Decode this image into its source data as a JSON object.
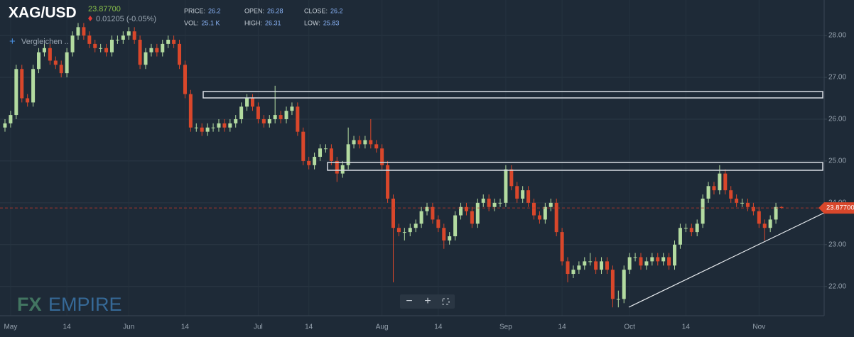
{
  "header": {
    "symbol": "XAG/USD",
    "change": "0.01205 (-0.05%)",
    "compare": "Vergleichen ..",
    "stats": [
      [
        {
          "label": "PRICE:",
          "value": "26.2"
        },
        {
          "label": "OPEN:",
          "value": "26.28"
        },
        {
          "label": "CLOSE:",
          "value": "26.2"
        }
      ],
      [
        {
          "label": "VOL:",
          "value": "25.1 K"
        },
        {
          "label": "HIGH:",
          "value": "26.31"
        },
        {
          "label": "LOW:",
          "value": "25.83"
        }
      ]
    ],
    "logo": {
      "left": "FX",
      "right": "EMPIRE"
    }
  },
  "chart_data": {
    "type": "candlestick",
    "up_color": "#b3dba0",
    "down_color": "#d9472b",
    "last_price": {
      "value": 23.877,
      "label": "23.87700"
    },
    "ylim": [
      21.3,
      28.85
    ],
    "yticks": [
      {
        "value": 22,
        "label": "22.00"
      },
      {
        "value": 23,
        "label": "23.00"
      },
      {
        "value": 24,
        "label": "24.00"
      },
      {
        "value": 25,
        "label": "25.00"
      },
      {
        "value": 26,
        "label": "26.00"
      },
      {
        "value": 27,
        "label": "27.00"
      },
      {
        "value": 28,
        "label": "28.00"
      }
    ],
    "grid": true,
    "categories": [
      null,
      "May",
      null,
      null,
      null,
      null,
      null,
      null,
      null,
      null,
      null,
      "14",
      null,
      null,
      null,
      null,
      null,
      null,
      null,
      null,
      null,
      null,
      "Jun",
      null,
      null,
      null,
      null,
      null,
      null,
      null,
      null,
      null,
      "14",
      null,
      null,
      null,
      null,
      null,
      null,
      null,
      null,
      null,
      null,
      null,
      null,
      "Jul",
      null,
      null,
      null,
      null,
      null,
      null,
      null,
      null,
      "14",
      null,
      null,
      null,
      null,
      null,
      null,
      null,
      null,
      null,
      null,
      null,
      null,
      "Aug",
      null,
      null,
      null,
      null,
      null,
      null,
      null,
      null,
      null,
      "14",
      null,
      null,
      null,
      null,
      null,
      null,
      null,
      null,
      null,
      null,
      null,
      "Sep",
      null,
      null,
      null,
      null,
      null,
      null,
      null,
      null,
      null,
      "14",
      null,
      null,
      null,
      null,
      null,
      null,
      null,
      null,
      null,
      null,
      null,
      "Oct",
      null,
      null,
      null,
      null,
      null,
      null,
      null,
      null,
      null,
      "14",
      null,
      null,
      null,
      null,
      null,
      null,
      null,
      null,
      null,
      null,
      null,
      null,
      "Nov",
      null,
      null,
      null,
      null
    ],
    "open": [
      25.8,
      25.9,
      26.1,
      27.2,
      26.5,
      26.4,
      27.2,
      27.6,
      27.7,
      27.4,
      27.3,
      27.1,
      27.6,
      28.0,
      28.2,
      28.0,
      27.8,
      27.7,
      27.7,
      27.6,
      27.9,
      27.9,
      28.0,
      28.1,
      27.9,
      27.3,
      27.6,
      27.7,
      27.6,
      27.8,
      27.9,
      27.8,
      27.3,
      26.6,
      25.8,
      25.8,
      25.7,
      25.8,
      25.8,
      25.9,
      25.8,
      25.9,
      26.0,
      26.3,
      26.5,
      26.3,
      26.0,
      25.9,
      26.0,
      26.1,
      26.0,
      26.2,
      26.3,
      25.7,
      25.0,
      24.9,
      25.1,
      25.3,
      25.3,
      25.0,
      24.7,
      24.9,
      25.4,
      25.5,
      25.4,
      25.5,
      25.4,
      25.3,
      24.9,
      24.1,
      23.4,
      23.3,
      23.3,
      23.4,
      23.5,
      23.8,
      23.9,
      23.6,
      23.4,
      23.1,
      23.2,
      23.7,
      23.9,
      23.8,
      23.5,
      24.0,
      24.1,
      23.9,
      24.0,
      24.0,
      24.8,
      24.4,
      24.1,
      24.3,
      24.0,
      23.7,
      23.6,
      23.9,
      24.0,
      23.3,
      22.6,
      22.3,
      22.4,
      22.5,
      22.6,
      22.6,
      22.4,
      22.6,
      22.4,
      21.7,
      21.7,
      22.4,
      22.7,
      22.7,
      22.5,
      22.6,
      22.7,
      22.6,
      22.7,
      22.5,
      23.0,
      23.4,
      23.4,
      23.3,
      23.5,
      24.1,
      24.4,
      24.3,
      24.7,
      24.3,
      24.1,
      24.0,
      24.0,
      23.9,
      23.8,
      23.5,
      23.4,
      23.6,
      23.9
    ],
    "high": [
      26.0,
      26.2,
      27.3,
      27.3,
      26.6,
      27.3,
      27.7,
      27.8,
      27.8,
      27.5,
      27.4,
      27.7,
      28.1,
      28.3,
      28.3,
      28.1,
      27.9,
      27.8,
      27.8,
      28.0,
      28.0,
      28.1,
      28.2,
      28.2,
      28.0,
      27.7,
      27.8,
      27.8,
      27.9,
      28.0,
      28.0,
      27.9,
      27.4,
      26.7,
      25.9,
      25.9,
      25.9,
      25.9,
      26.0,
      26.0,
      26.0,
      26.1,
      26.4,
      26.6,
      26.6,
      26.4,
      26.1,
      26.1,
      26.8,
      26.2,
      26.3,
      26.4,
      26.4,
      25.8,
      25.1,
      25.2,
      25.4,
      25.4,
      25.4,
      25.1,
      25.0,
      25.8,
      25.6,
      25.6,
      25.6,
      26.0,
      25.5,
      25.4,
      25.0,
      24.2,
      23.5,
      23.4,
      23.5,
      23.6,
      23.9,
      24.0,
      24.0,
      23.7,
      23.5,
      23.3,
      23.8,
      24.0,
      24.0,
      23.9,
      24.1,
      24.2,
      24.2,
      24.1,
      24.1,
      24.9,
      24.9,
      24.5,
      24.4,
      24.4,
      24.1,
      23.8,
      24.0,
      24.1,
      24.1,
      23.4,
      22.7,
      22.5,
      22.6,
      22.7,
      22.8,
      22.7,
      22.7,
      22.7,
      22.5,
      21.9,
      22.5,
      22.8,
      22.8,
      22.8,
      22.7,
      22.8,
      22.8,
      22.8,
      22.8,
      23.1,
      23.5,
      23.5,
      23.5,
      23.6,
      24.2,
      24.5,
      24.5,
      24.9,
      24.8,
      24.4,
      24.2,
      24.1,
      24.1,
      24.0,
      23.9,
      23.6,
      23.7,
      24.0,
      23.92
    ],
    "low": [
      25.7,
      25.8,
      26.0,
      26.4,
      26.3,
      26.3,
      27.1,
      27.5,
      27.3,
      27.2,
      27.0,
      27.0,
      27.5,
      27.9,
      27.9,
      27.7,
      27.6,
      27.6,
      27.5,
      27.5,
      27.8,
      27.8,
      27.9,
      27.8,
      27.2,
      27.2,
      27.5,
      27.5,
      27.5,
      27.7,
      27.7,
      27.2,
      26.5,
      25.7,
      25.7,
      25.6,
      25.6,
      25.7,
      25.7,
      25.7,
      25.7,
      25.8,
      25.9,
      26.2,
      26.2,
      25.9,
      25.8,
      25.8,
      25.9,
      25.9,
      25.9,
      26.1,
      25.6,
      24.9,
      24.8,
      24.8,
      25.0,
      25.2,
      24.9,
      24.5,
      24.6,
      24.8,
      25.3,
      25.3,
      25.3,
      25.3,
      25.2,
      24.8,
      24.0,
      22.1,
      23.2,
      23.1,
      23.2,
      23.3,
      23.4,
      23.7,
      23.5,
      23.3,
      22.9,
      23.0,
      23.1,
      23.6,
      23.7,
      23.4,
      23.4,
      23.9,
      23.8,
      23.8,
      23.9,
      23.9,
      24.3,
      24.0,
      24.0,
      23.9,
      23.6,
      23.5,
      23.5,
      23.8,
      23.2,
      22.5,
      22.1,
      22.2,
      22.3,
      22.4,
      22.5,
      22.3,
      22.3,
      22.3,
      21.5,
      21.5,
      21.6,
      22.3,
      22.6,
      22.4,
      22.4,
      22.5,
      22.5,
      22.5,
      22.4,
      22.4,
      22.9,
      23.3,
      23.2,
      23.2,
      23.4,
      24.0,
      24.2,
      24.2,
      24.2,
      24.0,
      23.9,
      23.9,
      23.8,
      23.7,
      23.4,
      23.1,
      23.3,
      23.5,
      23.86
    ],
    "close": [
      25.9,
      26.1,
      27.2,
      26.5,
      26.4,
      27.2,
      27.6,
      27.7,
      27.4,
      27.3,
      27.1,
      27.6,
      28.0,
      28.2,
      28.0,
      27.8,
      27.7,
      27.7,
      27.6,
      27.9,
      27.9,
      28.0,
      28.1,
      27.9,
      27.3,
      27.6,
      27.7,
      27.6,
      27.8,
      27.9,
      27.8,
      27.3,
      26.6,
      25.8,
      25.8,
      25.7,
      25.8,
      25.8,
      25.9,
      25.8,
      25.9,
      26.0,
      26.3,
      26.5,
      26.3,
      26.0,
      25.9,
      26.0,
      26.1,
      26.0,
      26.2,
      26.3,
      25.7,
      25.0,
      24.9,
      25.1,
      25.3,
      25.3,
      25.0,
      24.7,
      24.9,
      25.4,
      25.5,
      25.4,
      25.5,
      25.4,
      25.3,
      24.9,
      24.1,
      23.4,
      23.3,
      23.3,
      23.4,
      23.5,
      23.8,
      23.9,
      23.6,
      23.4,
      23.1,
      23.2,
      23.7,
      23.9,
      23.8,
      23.5,
      24.0,
      24.1,
      23.9,
      24.0,
      24.0,
      24.8,
      24.4,
      24.1,
      24.3,
      24.0,
      23.7,
      23.6,
      23.9,
      24.0,
      23.3,
      22.6,
      22.3,
      22.4,
      22.5,
      22.6,
      22.6,
      22.4,
      22.6,
      22.4,
      21.7,
      21.7,
      22.4,
      22.7,
      22.7,
      22.5,
      22.6,
      22.7,
      22.6,
      22.7,
      22.5,
      23.0,
      23.4,
      23.4,
      23.3,
      23.5,
      24.1,
      24.4,
      24.3,
      24.7,
      24.3,
      24.1,
      24.0,
      24.0,
      23.9,
      23.8,
      23.5,
      23.4,
      23.6,
      23.9,
      23.88
    ]
  }
}
